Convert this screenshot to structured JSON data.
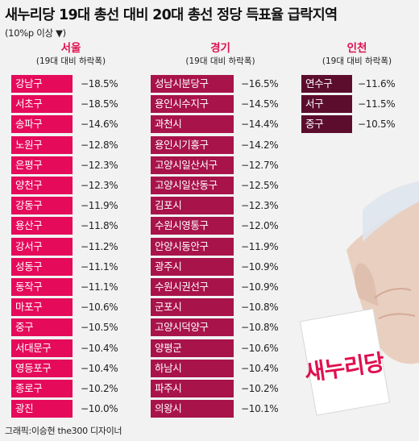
{
  "title": "새누리당 19대 총선 대비 20대 총선 정당 득표율 급락지역",
  "subtitle": "(10%p 이상 ▼)",
  "credit": "그래픽:이승현 the300 디자이너",
  "logo_text": "새누리당",
  "colors": {
    "accent": "#e0104f",
    "seoul_label": "#e50a5a",
    "gyeonggi_label": "#a8134a",
    "incheon_label": "#5c0d2e"
  },
  "chart_data": {
    "type": "table",
    "title": "새누리당 19대 총선 대비 20대 총선 정당 득표율 급락지역",
    "subtitle": "(10%p 이상 ▼)",
    "regions": [
      {
        "name": "서울",
        "caption": "(19대 대비 하락폭)",
        "rows": [
          {
            "district": "강남구",
            "value": "−18.5%"
          },
          {
            "district": "서초구",
            "value": "−18.5%"
          },
          {
            "district": "송파구",
            "value": "−14.6%"
          },
          {
            "district": "노원구",
            "value": "−12.8%"
          },
          {
            "district": "은평구",
            "value": "−12.3%"
          },
          {
            "district": "양천구",
            "value": "−12.3%"
          },
          {
            "district": "강동구",
            "value": "−11.9%"
          },
          {
            "district": "용산구",
            "value": "−11.8%"
          },
          {
            "district": "강서구",
            "value": "−11.2%"
          },
          {
            "district": "성동구",
            "value": "−11.1%"
          },
          {
            "district": "동작구",
            "value": "−11.1%"
          },
          {
            "district": "마포구",
            "value": "−10.6%"
          },
          {
            "district": "중구",
            "value": "−10.5%"
          },
          {
            "district": "서대문구",
            "value": "−10.4%"
          },
          {
            "district": "영등포구",
            "value": "−10.4%"
          },
          {
            "district": "종로구",
            "value": "−10.2%"
          },
          {
            "district": "광진",
            "value": "−10.0%"
          }
        ]
      },
      {
        "name": "경기",
        "caption": "(19대 대비 하락폭)",
        "rows": [
          {
            "district": "성남시분당구",
            "value": "−16.5%"
          },
          {
            "district": "용인시수지구",
            "value": "−14.5%"
          },
          {
            "district": "과천시",
            "value": "−14.4%"
          },
          {
            "district": "용인시기흥구",
            "value": "−14.2%"
          },
          {
            "district": "고양시일산서구",
            "value": "−12.7%"
          },
          {
            "district": "고양시일산동구",
            "value": "−12.5%"
          },
          {
            "district": "김포시",
            "value": "−12.3%"
          },
          {
            "district": "수원시영통구",
            "value": "−12.0%"
          },
          {
            "district": "안양시동안구",
            "value": "−11.9%"
          },
          {
            "district": "광주시",
            "value": "−10.9%"
          },
          {
            "district": "수원시권선구",
            "value": "−10.9%"
          },
          {
            "district": "군포시",
            "value": "−10.8%"
          },
          {
            "district": "고양시덕양구",
            "value": "−10.8%"
          },
          {
            "district": "양평군",
            "value": "−10.6%"
          },
          {
            "district": "하남시",
            "value": "−10.4%"
          },
          {
            "district": "파주시",
            "value": "−10.2%"
          },
          {
            "district": "의왕시",
            "value": "−10.1%"
          }
        ]
      },
      {
        "name": "인천",
        "caption": "(19대 대비 하락폭)",
        "rows": [
          {
            "district": "연수구",
            "value": "−11.6%"
          },
          {
            "district": "서구",
            "value": "−11.5%"
          },
          {
            "district": "중구",
            "value": "−10.5%"
          }
        ]
      }
    ]
  }
}
